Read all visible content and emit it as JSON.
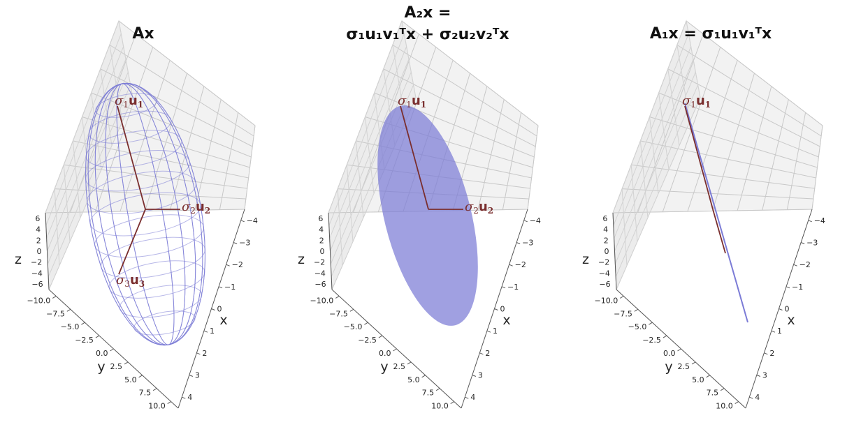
{
  "chart_data": [
    {
      "type": "scatter",
      "title": "Ax",
      "xlabel": "x",
      "ylabel": "y",
      "zlabel": "z",
      "xticks": [
        "4",
        "3",
        "2",
        "1",
        "0",
        "−1",
        "−2",
        "−3",
        "−4"
      ],
      "yticks": [
        "−10.0",
        "−7.5",
        "−5.0",
        "−2.5",
        "0.0",
        "2.5",
        "5.0",
        "7.5",
        "10.0"
      ],
      "zticks": [
        "6",
        "4",
        "2",
        "0",
        "−2",
        "−4",
        "−6"
      ],
      "xlim": [
        -4,
        4
      ],
      "ylim": [
        -10,
        10
      ],
      "zlim": [
        -6,
        6
      ],
      "grid": true,
      "surface": "ellipsoid wireframe",
      "vectors": [
        {
          "symbol": "σ",
          "sub": "1",
          "vec": "u",
          "vsub": "1"
        },
        {
          "symbol": "σ",
          "sub": "2",
          "vec": "u",
          "vsub": "2"
        },
        {
          "symbol": "σ",
          "sub": "3",
          "vec": "u",
          "vsub": "3"
        }
      ]
    },
    {
      "type": "scatter",
      "title_line1": "A₂x =",
      "title_line2": "σ₁u₁v₁ᵀx + σ₂u₂v₂ᵀx",
      "xlabel": "x",
      "ylabel": "y",
      "zlabel": "z",
      "xticks": [
        "4",
        "3",
        "2",
        "1",
        "0",
        "−1",
        "−2",
        "−3",
        "−4"
      ],
      "yticks": [
        "−10.0",
        "−7.5",
        "−5.0",
        "−2.5",
        "0.0",
        "2.5",
        "5.0",
        "7.5",
        "10.0"
      ],
      "zticks": [
        "6",
        "4",
        "2",
        "0",
        "−2",
        "−4",
        "−6"
      ],
      "xlim": [
        -4,
        4
      ],
      "ylim": [
        -10,
        10
      ],
      "zlim": [
        -6,
        6
      ],
      "grid": true,
      "surface": "filled ellipse",
      "vectors": [
        {
          "symbol": "σ",
          "sub": "1",
          "vec": "u",
          "vsub": "1"
        },
        {
          "symbol": "σ",
          "sub": "2",
          "vec": "u",
          "vsub": "2"
        }
      ]
    },
    {
      "type": "line",
      "title": "A₁x = σ₁u₁v₁ᵀx",
      "xlabel": "x",
      "ylabel": "y",
      "zlabel": "z",
      "xticks": [
        "4",
        "3",
        "2",
        "1",
        "0",
        "−1",
        "−2",
        "−3",
        "−4"
      ],
      "yticks": [
        "−10.0",
        "−7.5",
        "−5.0",
        "−2.5",
        "0.0",
        "2.5",
        "5.0",
        "7.5",
        "10.0"
      ],
      "zticks": [
        "6",
        "4",
        "2",
        "0",
        "−2",
        "−4",
        "−6"
      ],
      "xlim": [
        -4,
        4
      ],
      "ylim": [
        -10,
        10
      ],
      "zlim": [
        -6,
        6
      ],
      "grid": true,
      "surface": "line segment",
      "vectors": [
        {
          "symbol": "σ",
          "sub": "1",
          "vec": "u",
          "vsub": "1"
        }
      ]
    }
  ],
  "colors": {
    "pane": "#f2f2f2",
    "grid": "#c8c8c8",
    "surface": "#7b7bd6",
    "vector": "#7a2e2e",
    "tick": "#262626"
  }
}
